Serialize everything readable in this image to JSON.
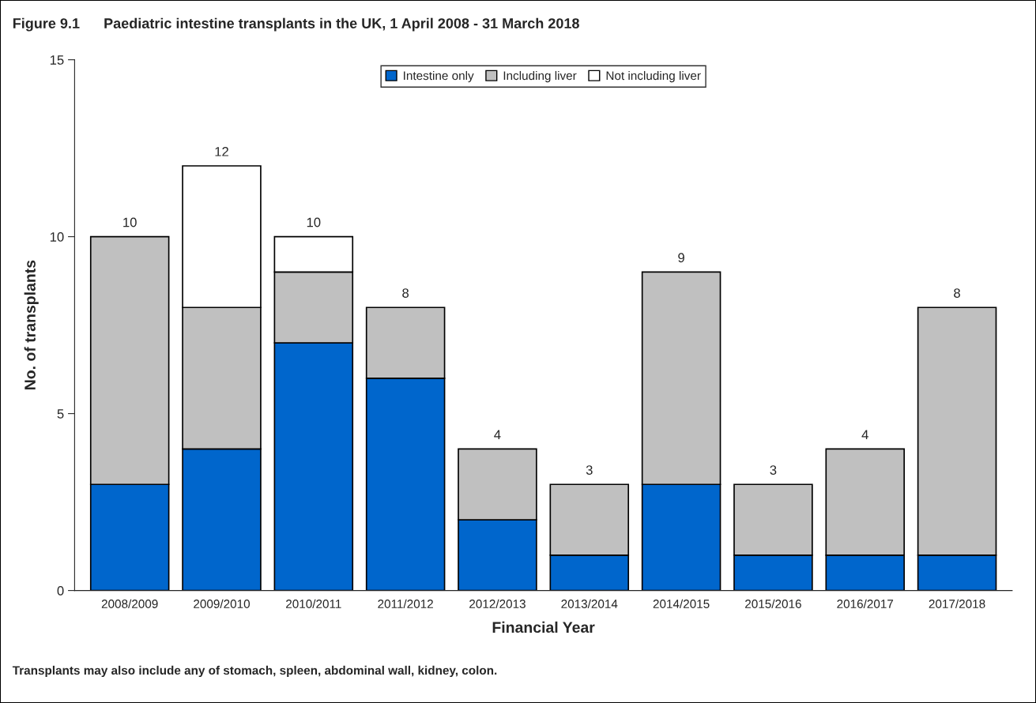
{
  "chart_data": {
    "type": "bar",
    "title": "Figure 9.1      Paediatric intestine transplants in the UK, 1 April 2008 - 31 March 2018",
    "xlabel": "Financial Year",
    "ylabel": "No. of transplants",
    "categories": [
      "2008/2009",
      "2009/2010",
      "2010/2011",
      "2011/2012",
      "2012/2013",
      "2013/2014",
      "2014/2015",
      "2015/2016",
      "2016/2017",
      "2017/2018"
    ],
    "series": [
      {
        "name": "Intestine only",
        "color": "#0066cc",
        "values": [
          3,
          4,
          7,
          6,
          2,
          1,
          3,
          1,
          1,
          1
        ]
      },
      {
        "name": "Including liver",
        "color": "#c0c0c0",
        "values": [
          7,
          4,
          2,
          2,
          2,
          2,
          6,
          2,
          3,
          7
        ]
      },
      {
        "name": "Not including liver",
        "color": "#ffffff",
        "values": [
          null,
          4,
          1,
          null,
          null,
          null,
          null,
          null,
          null,
          null
        ]
      }
    ],
    "stacked": true,
    "totals": [
      "10",
      "12",
      "10",
      "8",
      "4",
      "3",
      "9",
      "3",
      "4",
      "8"
    ],
    "ylim": [
      0,
      15
    ],
    "yticks": [
      0,
      5,
      10,
      15
    ],
    "grid": false,
    "legend": "top",
    "annotations": [
      "Transplants may also include any of stomach, spleen, abdominal wall, kidney, colon."
    ]
  }
}
